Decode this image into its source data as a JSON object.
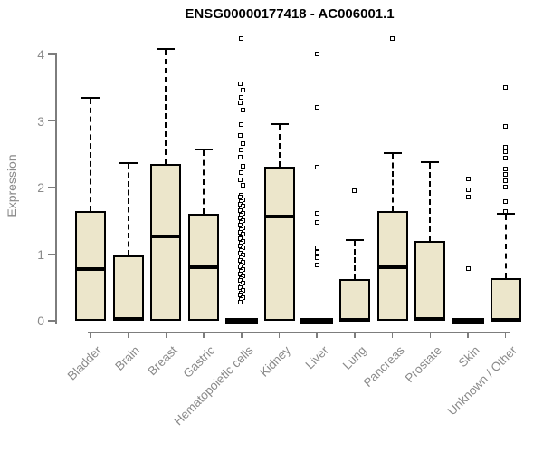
{
  "chart_data": {
    "type": "boxplot",
    "title": "ENSG00000177418 - AC006001.1",
    "xlabel": "",
    "ylabel": "Expression",
    "ylim": [
      0,
      4.3
    ],
    "yticks": [
      0,
      1,
      2,
      3,
      4
    ],
    "grid": false,
    "legend": null,
    "colors": {
      "box_fill": "#ECE6CB",
      "box_border": "#000000",
      "axis": "#7d7d7d",
      "tick_label": "#8a8a8a",
      "title": "#000000"
    },
    "categories": [
      "Bladder",
      "Brain",
      "Breast",
      "Gastric",
      "Hematopoietic cells",
      "Kidney",
      "Liver",
      "Lung",
      "Pancreas",
      "Prostate",
      "Skin",
      "Unknown / Other"
    ],
    "boxes": [
      {
        "category": "Bladder",
        "q1": 0,
        "median": 0.78,
        "q3": 1.65,
        "whisker_low": 0,
        "whisker_high": 3.36,
        "outliers": []
      },
      {
        "category": "Brain",
        "q1": 0,
        "median": 0.03,
        "q3": 0.98,
        "whisker_low": 0,
        "whisker_high": 2.38,
        "outliers": []
      },
      {
        "category": "Breast",
        "q1": 0,
        "median": 1.27,
        "q3": 2.35,
        "whisker_low": 0,
        "whisker_high": 4.1,
        "outliers": []
      },
      {
        "category": "Gastric",
        "q1": 0,
        "median": 0.8,
        "q3": 1.61,
        "whisker_low": 0,
        "whisker_high": 2.59,
        "outliers": []
      },
      {
        "category": "Hematopoietic cells",
        "q1": 0,
        "median": 0.02,
        "q3": 0.04,
        "whisker_low": 0,
        "whisker_high": 0.04,
        "outliers": [
          4.24,
          3.56,
          3.46,
          3.36,
          3.27,
          3.17,
          2.94,
          2.78,
          2.66,
          2.56,
          2.46,
          2.32,
          2.22,
          2.12,
          2.04,
          1.89,
          1.86,
          1.82,
          1.79,
          1.75,
          1.72,
          1.68,
          1.65,
          1.61,
          1.58,
          1.54,
          1.51,
          1.47,
          1.44,
          1.4,
          1.37,
          1.33,
          1.3,
          1.26,
          1.23,
          1.19,
          1.16,
          1.12,
          1.09,
          1.05,
          1.02,
          0.98,
          0.95,
          0.91,
          0.88,
          0.84,
          0.81,
          0.77,
          0.74,
          0.7,
          0.67,
          0.63,
          0.6,
          0.56,
          0.53,
          0.49,
          0.46,
          0.42,
          0.39,
          0.35,
          0.32,
          0.28
        ]
      },
      {
        "category": "Kidney",
        "q1": 0,
        "median": 1.56,
        "q3": 2.31,
        "whisker_low": 0,
        "whisker_high": 2.96,
        "outliers": []
      },
      {
        "category": "Liver",
        "q1": 0,
        "median": 0.02,
        "q3": 0.03,
        "whisker_low": 0,
        "whisker_high": 0.03,
        "outliers": [
          4.01,
          3.21,
          2.3,
          1.61,
          1.48,
          1.1,
          1.03,
          0.94,
          0.83
        ]
      },
      {
        "category": "Lung",
        "q1": 0,
        "median": 0.02,
        "q3": 0.63,
        "whisker_low": 0,
        "whisker_high": 1.23,
        "outliers": [
          1.95
        ]
      },
      {
        "category": "Pancreas",
        "q1": 0,
        "median": 0.8,
        "q3": 1.64,
        "whisker_low": 0,
        "whisker_high": 2.53,
        "outliers": [
          4.24
        ]
      },
      {
        "category": "Prostate",
        "q1": 0,
        "median": 0.03,
        "q3": 1.2,
        "whisker_low": 0,
        "whisker_high": 2.4,
        "outliers": []
      },
      {
        "category": "Skin",
        "q1": 0,
        "median": 0.02,
        "q3": 0.03,
        "whisker_low": 0,
        "whisker_high": 0.03,
        "outliers": [
          2.13,
          1.96,
          1.86,
          0.78
        ]
      },
      {
        "category": "Unknown / Other",
        "q1": 0,
        "median": 0.02,
        "q3": 0.64,
        "whisker_low": 0,
        "whisker_high": 1.62,
        "outliers": [
          3.5,
          2.92,
          2.61,
          2.54,
          2.44,
          2.28,
          2.2,
          2.1,
          2.01,
          1.79,
          1.64
        ]
      }
    ]
  }
}
